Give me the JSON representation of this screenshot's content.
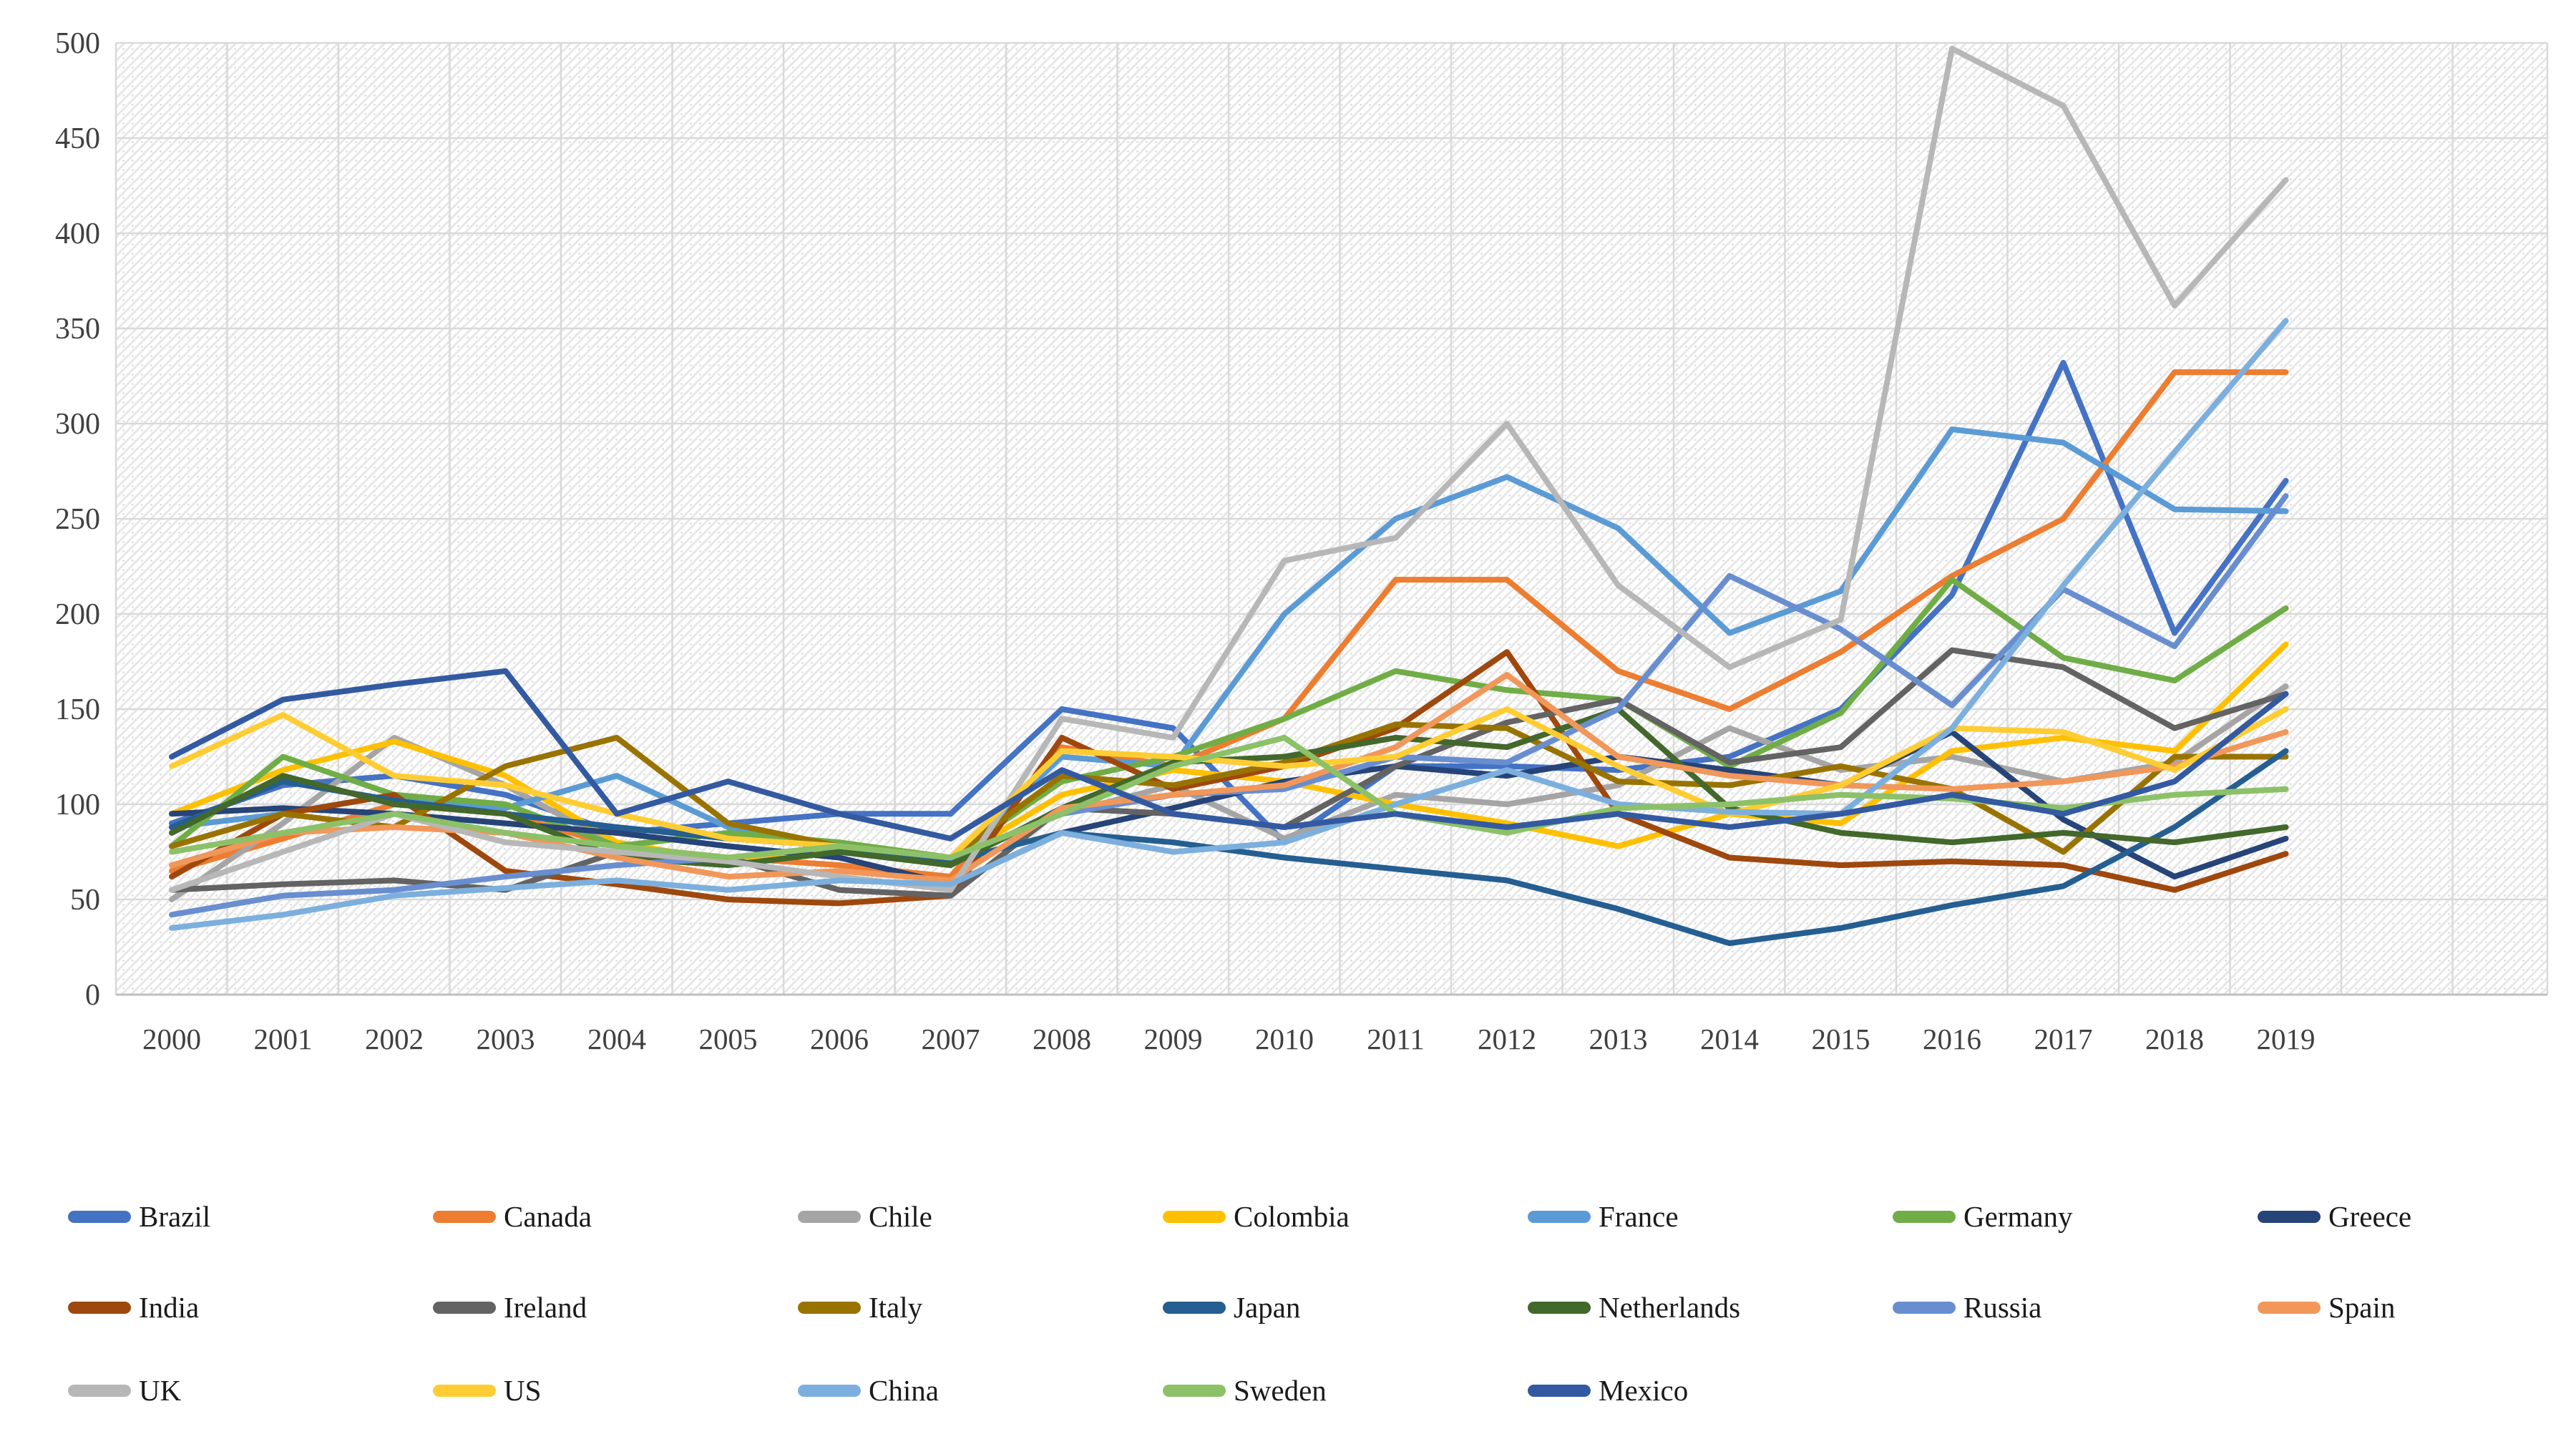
{
  "chart_data": {
    "type": "line",
    "title": "",
    "xlabel": "",
    "ylabel": "",
    "ylim": [
      0,
      500
    ],
    "ytick_step": 50,
    "y_tick_labels": [
      "0",
      "50",
      "100",
      "150",
      "200",
      "250",
      "300",
      "350",
      "400",
      "450",
      "500"
    ],
    "x_tick_labels": [
      "2000",
      "2001",
      "2002",
      "2003",
      "2004",
      "2005",
      "2006",
      "2007",
      "2008",
      "2009",
      "2010",
      "2011",
      "2012",
      "2013",
      "2014",
      "2015",
      "2016",
      "2017",
      "2018",
      "2019"
    ],
    "x": [
      2000,
      2001,
      2002,
      2003,
      2004,
      2005,
      2006,
      2007,
      2008,
      2009,
      2010,
      2011,
      2012,
      2013,
      2014,
      2015,
      2016,
      2017,
      2018,
      2019
    ],
    "grid": true,
    "plot_background": "diagonal-hatch",
    "gridline_color": "#d9d9d9",
    "axis_line_color": "#bfbfbf",
    "legend_position": "bottom",
    "series": [
      {
        "name": "Brazil",
        "color": "#4472C4",
        "values": [
          90,
          110,
          115,
          105,
          85,
          90,
          95,
          95,
          150,
          140,
          80,
          120,
          120,
          118,
          125,
          150,
          210,
          332,
          190,
          270
        ]
      },
      {
        "name": "Canada",
        "color": "#ED7D31",
        "values": [
          65,
          82,
          100,
          95,
          78,
          72,
          68,
          62,
          130,
          120,
          145,
          218,
          218,
          170,
          150,
          180,
          220,
          250,
          327,
          327
        ]
      },
      {
        "name": "Chile",
        "color": "#A5A5A5",
        "values": [
          50,
          90,
          135,
          110,
          78,
          70,
          78,
          70,
          95,
          110,
          82,
          105,
          100,
          110,
          140,
          118,
          125,
          112,
          122,
          162
        ]
      },
      {
        "name": "Colombia",
        "color": "#FFC000",
        "values": [
          95,
          118,
          133,
          115,
          80,
          70,
          78,
          70,
          105,
          118,
          112,
          100,
          90,
          78,
          95,
          90,
          128,
          135,
          128,
          184
        ]
      },
      {
        "name": "France",
        "color": "#5B9BD5",
        "values": [
          88,
          95,
          105,
          98,
          115,
          88,
          75,
          70,
          125,
          120,
          200,
          250,
          272,
          245,
          190,
          212,
          297,
          290,
          255,
          254
        ]
      },
      {
        "name": "Germany",
        "color": "#70AD47",
        "values": [
          78,
          125,
          105,
          100,
          78,
          85,
          80,
          72,
          112,
          125,
          145,
          170,
          160,
          155,
          120,
          148,
          218,
          177,
          165,
          203
        ]
      },
      {
        "name": "Greece",
        "color": "#264478",
        "values": [
          95,
          98,
          95,
          90,
          85,
          78,
          72,
          58,
          85,
          98,
          112,
          120,
          115,
          125,
          118,
          110,
          138,
          92,
          62,
          82
        ]
      },
      {
        "name": "India",
        "color": "#9E480E",
        "values": [
          62,
          95,
          105,
          65,
          58,
          50,
          48,
          52,
          135,
          108,
          120,
          140,
          180,
          95,
          72,
          68,
          70,
          68,
          55,
          74
        ]
      },
      {
        "name": "Ireland",
        "color": "#636363",
        "values": [
          55,
          58,
          60,
          55,
          75,
          72,
          55,
          52,
          98,
          95,
          88,
          120,
          143,
          155,
          122,
          130,
          181,
          172,
          140,
          158
        ]
      },
      {
        "name": "Italy",
        "color": "#997300",
        "values": [
          78,
          95,
          88,
          120,
          135,
          90,
          78,
          72,
          115,
          110,
          122,
          142,
          140,
          112,
          110,
          120,
          108,
          75,
          125,
          125
        ]
      },
      {
        "name": "Japan",
        "color": "#255E91",
        "values": [
          88,
          112,
          102,
          95,
          88,
          82,
          78,
          70,
          85,
          80,
          72,
          66,
          60,
          45,
          27,
          35,
          47,
          57,
          88,
          128
        ]
      },
      {
        "name": "Netherlands",
        "color": "#43682B",
        "values": [
          85,
          115,
          100,
          95,
          72,
          68,
          75,
          68,
          98,
          122,
          125,
          135,
          130,
          150,
          98,
          85,
          80,
          85,
          80,
          88
        ]
      },
      {
        "name": "Russia",
        "color": "#698ED0",
        "values": [
          42,
          52,
          55,
          62,
          68,
          72,
          78,
          72,
          95,
          105,
          108,
          125,
          122,
          150,
          220,
          192,
          152,
          213,
          183,
          262
        ]
      },
      {
        "name": "Spain",
        "color": "#F1975A",
        "values": [
          68,
          85,
          88,
          85,
          72,
          62,
          65,
          60,
          98,
          105,
          110,
          130,
          168,
          125,
          115,
          110,
          108,
          112,
          120,
          138
        ]
      },
      {
        "name": "UK",
        "color": "#B7B7B7",
        "values": [
          55,
          75,
          95,
          80,
          75,
          70,
          62,
          55,
          145,
          135,
          228,
          240,
          300,
          215,
          172,
          197,
          497,
          467,
          362,
          428
        ]
      },
      {
        "name": "US",
        "color": "#FFCD33",
        "values": [
          120,
          147,
          115,
          110,
          95,
          82,
          78,
          72,
          128,
          125,
          120,
          125,
          150,
          120,
          95,
          110,
          140,
          138,
          118,
          150
        ]
      },
      {
        "name": "China",
        "color": "#7CAFDD",
        "values": [
          35,
          42,
          52,
          56,
          60,
          55,
          60,
          58,
          85,
          75,
          80,
          100,
          118,
          100,
          96,
          95,
          140,
          215,
          285,
          354
        ]
      },
      {
        "name": "Sweden",
        "color": "#8CC168",
        "values": [
          75,
          85,
          95,
          85,
          78,
          72,
          78,
          72,
          95,
          120,
          135,
          95,
          85,
          98,
          100,
          105,
          103,
          98,
          105,
          108
        ]
      },
      {
        "name": "Mexico",
        "color": "#335AA1",
        "values": [
          125,
          155,
          163,
          170,
          95,
          112,
          95,
          82,
          118,
          95,
          88,
          95,
          88,
          95,
          88,
          95,
          105,
          95,
          112,
          158
        ]
      }
    ],
    "layout": {
      "plot_left": 162,
      "plot_right": 3560,
      "plot_top": 60,
      "plot_bottom": 1390,
      "first_category_x": 240,
      "category_pitch": 155.5,
      "legend_col_start_x": 95,
      "legend_col_pitch": 510,
      "legend_row_y": [
        1700,
        1827,
        1943
      ],
      "legend_cols": 7
    }
  }
}
